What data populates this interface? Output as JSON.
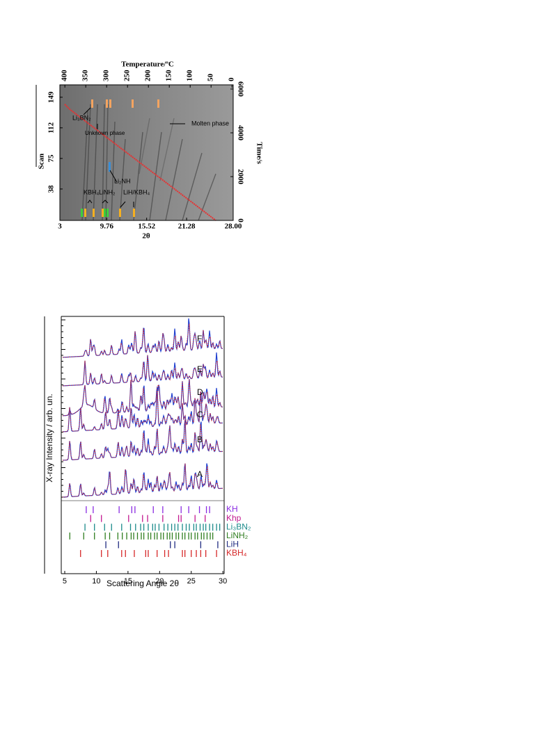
{
  "figure_1": {
    "top_axis": {
      "label": "Temperature/ºC",
      "lim": [
        412,
        -3
      ],
      "ticks": [
        400,
        350,
        300,
        250,
        200,
        150,
        100,
        50,
        0
      ]
    },
    "bottom_axis": {
      "label": "2θ",
      "lim": [
        3,
        28
      ],
      "ticks": [
        3,
        9.76,
        15.52,
        21.28,
        {
          "value": 28,
          "label": "28.00"
        }
      ]
    },
    "left_axis": {
      "label": "Scan",
      "lim": [
        0,
        164
      ],
      "ticks": [
        38,
        75,
        112,
        149
      ]
    },
    "right_axis": {
      "label": "Time/s",
      "lim": [
        0,
        6190
      ],
      "ticks": [
        0,
        2000,
        4000,
        6000
      ]
    },
    "annotations": [
      "Li₃BN₂",
      "Unknown phase",
      "Molten phase",
      "Li₂NH",
      "KBH₄",
      "LiNH₂",
      "LiH/KBH₄"
    ]
  },
  "figure_2": {
    "x_axis": {
      "label": "Scattering Angle 2θ",
      "lim": [
        4.45,
        30.2
      ],
      "ticks": [
        5,
        10,
        15,
        20,
        25,
        30
      ]
    },
    "y_axis_label": "X-ray Intensity / arb. un.",
    "patterns": [
      "A",
      "B",
      "C",
      "D",
      "E",
      "F"
    ],
    "phases": [
      {
        "name": "KH",
        "color": "#8a2be2",
        "reflections": [
          8.4,
          9.5,
          13.6,
          15.6,
          16.1,
          19.0,
          20.5,
          23.4,
          24.6,
          26.3,
          27.4,
          27.9
        ]
      },
      {
        "name": "Khp",
        "color": "#c2188f",
        "reflections": [
          9.1,
          10.8,
          15.1,
          17.3,
          18.1,
          20.5,
          23.0,
          23.4,
          25.6,
          27.2
        ]
      },
      {
        "name": "Li₃BN₂",
        "color": "#1a8a8a",
        "reflections": [
          8.2,
          9.7,
          11.3,
          12.4,
          14.0,
          15.4,
          16.2,
          17.0,
          17.5,
          18.2,
          18.9,
          19.3,
          19.9,
          20.7,
          21.3,
          21.9,
          22.4,
          22.9,
          23.6,
          24.2,
          24.7,
          25.4,
          25.8,
          26.4,
          26.9,
          27.3,
          27.9,
          28.4,
          29.0,
          29.5
        ]
      },
      {
        "name": "LiNH₂",
        "color": "#2e7d1e",
        "reflections": [
          5.8,
          8.0,
          9.7,
          11.4,
          12.1,
          13.4,
          14.1,
          14.8,
          15.5,
          15.9,
          16.5,
          17.1,
          17.5,
          18.2,
          18.6,
          19.2,
          19.6,
          20.2,
          20.6,
          21.2,
          21.6,
          22.0,
          22.6,
          23.0,
          23.6,
          24.0,
          24.6,
          25.0,
          25.6,
          26.0,
          26.6,
          27.0,
          27.5,
          28.0,
          28.4
        ]
      },
      {
        "name": "LiH",
        "color": "#1f2a80",
        "reflections": [
          11.5,
          13.5,
          21.7,
          22.4,
          26.5,
          29.2
        ]
      },
      {
        "name": "KBH₄",
        "color": "#d62728",
        "reflections": [
          7.5,
          10.8,
          11.8,
          14.0,
          14.6,
          16.0,
          17.8,
          18.2,
          19.6,
          20.8,
          21.4,
          23.6,
          24.0,
          25.0,
          25.8,
          26.5,
          27.3,
          29.0
        ]
      }
    ]
  }
}
